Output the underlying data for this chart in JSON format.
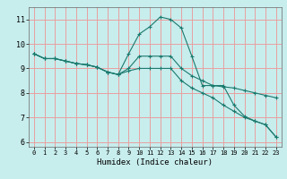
{
  "xlabel": "Humidex (Indice chaleur)",
  "background_color": "#c8eded",
  "grid_color": "#e8a0a0",
  "line_color": "#1a7a6e",
  "xlim": [
    -0.5,
    23.5
  ],
  "ylim": [
    5.8,
    11.5
  ],
  "yticks": [
    6,
    7,
    8,
    9,
    10,
    11
  ],
  "xticks": [
    0,
    1,
    2,
    3,
    4,
    5,
    6,
    7,
    8,
    9,
    10,
    11,
    12,
    13,
    14,
    15,
    16,
    17,
    18,
    19,
    20,
    21,
    22,
    23
  ],
  "lines": [
    {
      "x": [
        0,
        1,
        2,
        3,
        4,
        5,
        6,
        7,
        8,
        9,
        10,
        11,
        12,
        13,
        14,
        15,
        16,
        17,
        18,
        19,
        20,
        21,
        22,
        23
      ],
      "y": [
        9.6,
        9.4,
        9.4,
        9.3,
        9.2,
        9.15,
        9.05,
        8.85,
        8.75,
        9.6,
        10.4,
        10.7,
        11.1,
        11.0,
        10.65,
        9.5,
        8.3,
        8.3,
        8.3,
        7.5,
        7.05,
        6.85,
        6.7,
        6.2
      ]
    },
    {
      "x": [
        0,
        1,
        2,
        3,
        4,
        5,
        6,
        7,
        8,
        9,
        10,
        11,
        12,
        13,
        14,
        15,
        16,
        17,
        18,
        19,
        20,
        21,
        22,
        23
      ],
      "y": [
        9.6,
        9.4,
        9.4,
        9.3,
        9.2,
        9.15,
        9.05,
        8.85,
        8.75,
        9.0,
        9.5,
        9.5,
        9.5,
        9.5,
        9.0,
        8.7,
        8.5,
        8.3,
        8.25,
        8.2,
        8.1,
        8.0,
        7.9,
        7.8
      ]
    },
    {
      "x": [
        0,
        1,
        2,
        3,
        4,
        5,
        6,
        7,
        8,
        9,
        10,
        11,
        12,
        13,
        14,
        15,
        16,
        17,
        18,
        19,
        20,
        21,
        22,
        23
      ],
      "y": [
        9.6,
        9.4,
        9.4,
        9.3,
        9.2,
        9.15,
        9.05,
        8.85,
        8.75,
        8.9,
        9.0,
        9.0,
        9.0,
        9.0,
        8.5,
        8.2,
        8.0,
        7.8,
        7.5,
        7.25,
        7.0,
        6.85,
        6.7,
        6.2
      ]
    }
  ]
}
